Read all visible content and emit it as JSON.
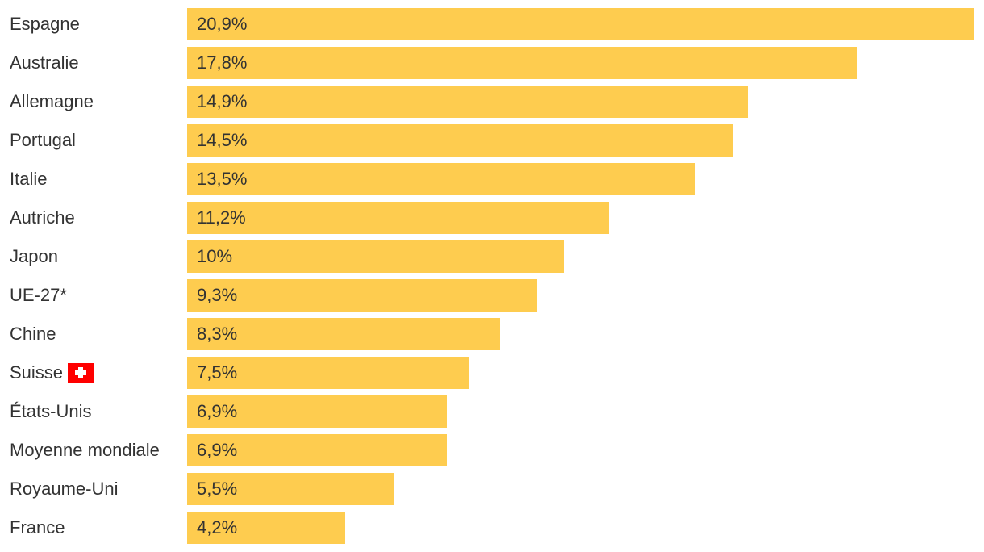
{
  "chart_data": {
    "type": "bar",
    "orientation": "horizontal",
    "categories": [
      "Espagne",
      "Australie",
      "Allemagne",
      "Portugal",
      "Italie",
      "Autriche",
      "Japon",
      "UE-27*",
      "Chine",
      "Suisse",
      "États-Unis",
      "Moyenne mondiale",
      "Royaume-Uni",
      "France"
    ],
    "values": [
      20.9,
      17.8,
      14.9,
      14.5,
      13.5,
      11.2,
      10,
      9.3,
      8.3,
      7.5,
      6.9,
      6.9,
      5.5,
      4.2
    ],
    "value_labels": [
      "20,9%",
      "17,8%",
      "14,9%",
      "14,5%",
      "13,5%",
      "11,2%",
      "10%",
      "9,3%",
      "8,3%",
      "7,5%",
      "6,9%",
      "6,9%",
      "5,5%",
      "4,2%"
    ],
    "flag_icons": {
      "Suisse": "swiss-flag-icon"
    },
    "title": "",
    "xlabel": "",
    "ylabel": "",
    "xlim": [
      0,
      20.9
    ],
    "grid": false,
    "legend": "none",
    "colors": {
      "bar": "#fecc4f",
      "text": "#333333"
    }
  }
}
